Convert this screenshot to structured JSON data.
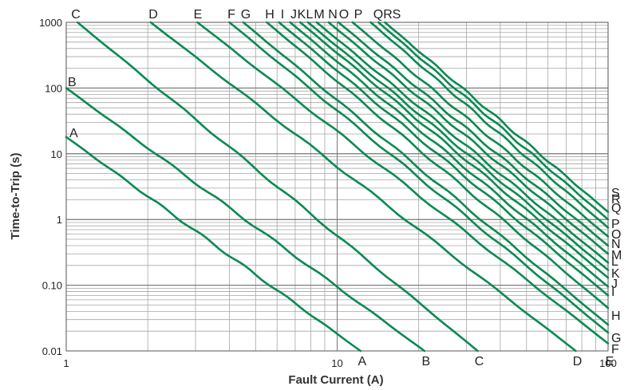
{
  "chart_data": {
    "type": "line",
    "xlabel": "Fault Current (A)",
    "ylabel": "Time-to-Trip (s)",
    "x_scale": "log",
    "y_scale": "log",
    "xlim": [
      1,
      100
    ],
    "ylim": [
      0.01,
      1000
    ],
    "grid": true,
    "x_ticks": [
      {
        "value": 1,
        "label": "1"
      },
      {
        "value": 10,
        "label": "10"
      },
      {
        "value": 100,
        "label": "100"
      }
    ],
    "y_ticks": [
      {
        "value": 1000,
        "label": "1000"
      },
      {
        "value": 100,
        "label": "100"
      },
      {
        "value": 10,
        "label": "10"
      },
      {
        "value": 1,
        "label": "1"
      },
      {
        "value": 0.1,
        "label": "0.10"
      },
      {
        "value": 0.01,
        "label": "0.01"
      }
    ],
    "series": [
      {
        "name": "A",
        "x": [
          1,
          12.2
        ],
        "y": [
          18,
          0.01
        ]
      },
      {
        "name": "B",
        "x": [
          1,
          21
        ],
        "y": [
          100,
          0.01
        ]
      },
      {
        "name": "C",
        "x": [
          1.1,
          33
        ],
        "y": [
          1000,
          0.01
        ]
      },
      {
        "name": "D",
        "x": [
          2.05,
          76
        ],
        "y": [
          1000,
          0.01
        ]
      },
      {
        "name": "E",
        "x": [
          3.05,
          100
        ],
        "y": [
          1000,
          0.013
        ]
      },
      {
        "name": "F",
        "x": [
          4.0,
          100
        ],
        "y": [
          1000,
          0.019
        ]
      },
      {
        "name": "G",
        "x": [
          4.5,
          100
        ],
        "y": [
          1000,
          0.025
        ]
      },
      {
        "name": "H",
        "x": [
          5.5,
          100
        ],
        "y": [
          1000,
          0.045
        ]
      },
      {
        "name": "I",
        "x": [
          6.1,
          100
        ],
        "y": [
          1000,
          0.07
        ]
      },
      {
        "name": "J",
        "x": [
          6.7,
          100
        ],
        "y": [
          1000,
          0.095
        ]
      },
      {
        "name": "K",
        "x": [
          7.3,
          100
        ],
        "y": [
          1000,
          0.13
        ]
      },
      {
        "name": "L",
        "x": [
          7.8,
          100
        ],
        "y": [
          1000,
          0.17
        ]
      },
      {
        "name": "M",
        "x": [
          8.4,
          100
        ],
        "y": [
          1000,
          0.22
        ]
      },
      {
        "name": "N",
        "x": [
          9.3,
          100
        ],
        "y": [
          1000,
          0.3
        ]
      },
      {
        "name": "O",
        "x": [
          10.1,
          100
        ],
        "y": [
          1000,
          0.4
        ]
      },
      {
        "name": "P",
        "x": [
          11.4,
          100
        ],
        "y": [
          1000,
          0.55
        ]
      },
      {
        "name": "Q",
        "x": [
          13.3,
          100
        ],
        "y": [
          1000,
          0.75
        ]
      },
      {
        "name": "R",
        "x": [
          14.2,
          100
        ],
        "y": [
          1000,
          1.0
        ]
      },
      {
        "name": "S",
        "x": [
          15.0,
          100
        ],
        "y": [
          1000,
          1.3
        ]
      }
    ],
    "top_labels": [
      "C",
      "D",
      "E",
      "F",
      "G",
      "H",
      "I",
      "J",
      "K",
      "L",
      "M",
      "N",
      "O",
      "P",
      "Q",
      "R",
      "S"
    ],
    "right_labels": [
      "S",
      "R",
      "Q",
      "P",
      "O",
      "N",
      "M",
      "L",
      "K",
      "J",
      "I",
      "H",
      "G",
      "F"
    ],
    "left_labels": [
      "B",
      "A"
    ],
    "bottom_labels": [
      "A",
      "B",
      "C",
      "D",
      "E"
    ],
    "line_color": "#0a8a52"
  }
}
